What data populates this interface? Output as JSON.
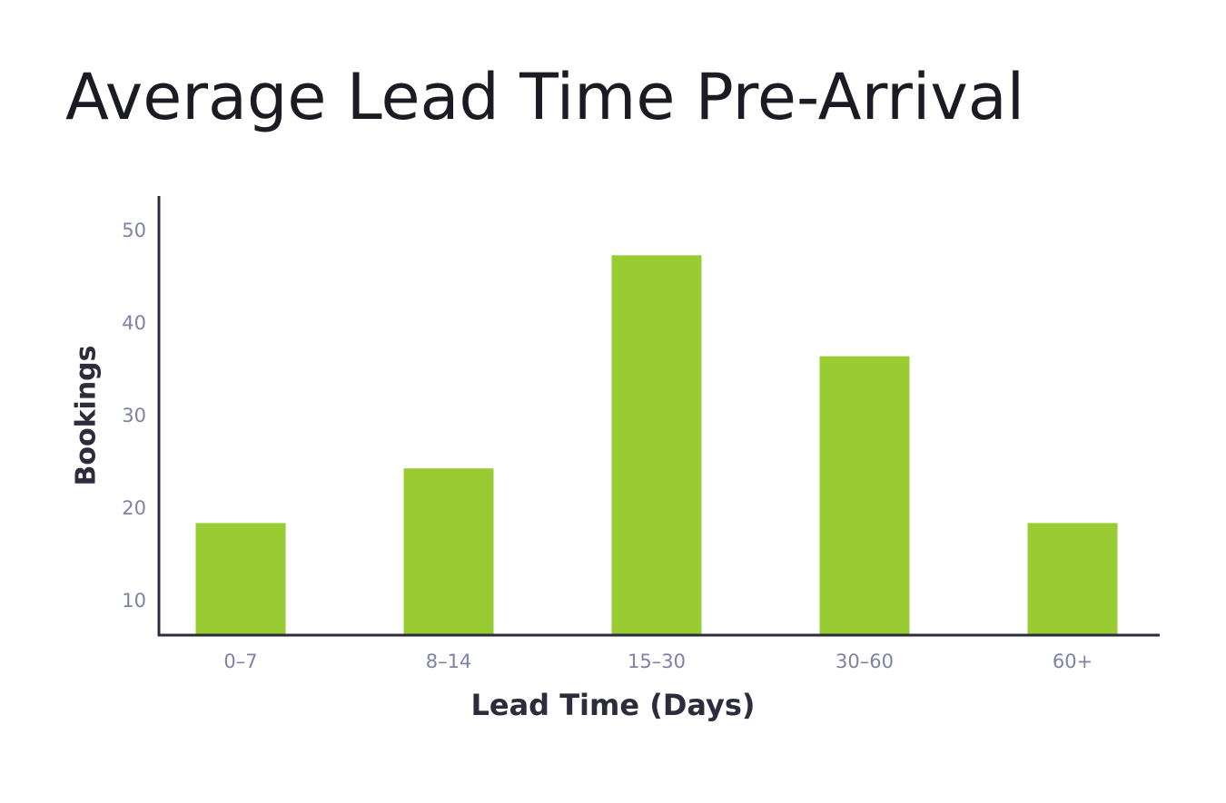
{
  "chart_data": {
    "type": "bar",
    "title": "Average Lead Time Pre-Arrival",
    "x_label": "Lead Time (Days)",
    "y_label": "Bookings",
    "categories": [
      "0–7",
      "8–14",
      "15–30",
      "30–60",
      "60+"
    ],
    "values": [
      18.5,
      24.4,
      47.4,
      36.5,
      18.5
    ],
    "color": "#99cc33",
    "ylim": [
      6.4,
      53.8
    ],
    "yticks": [
      10,
      20,
      30,
      40,
      50
    ],
    "grid": false
  }
}
